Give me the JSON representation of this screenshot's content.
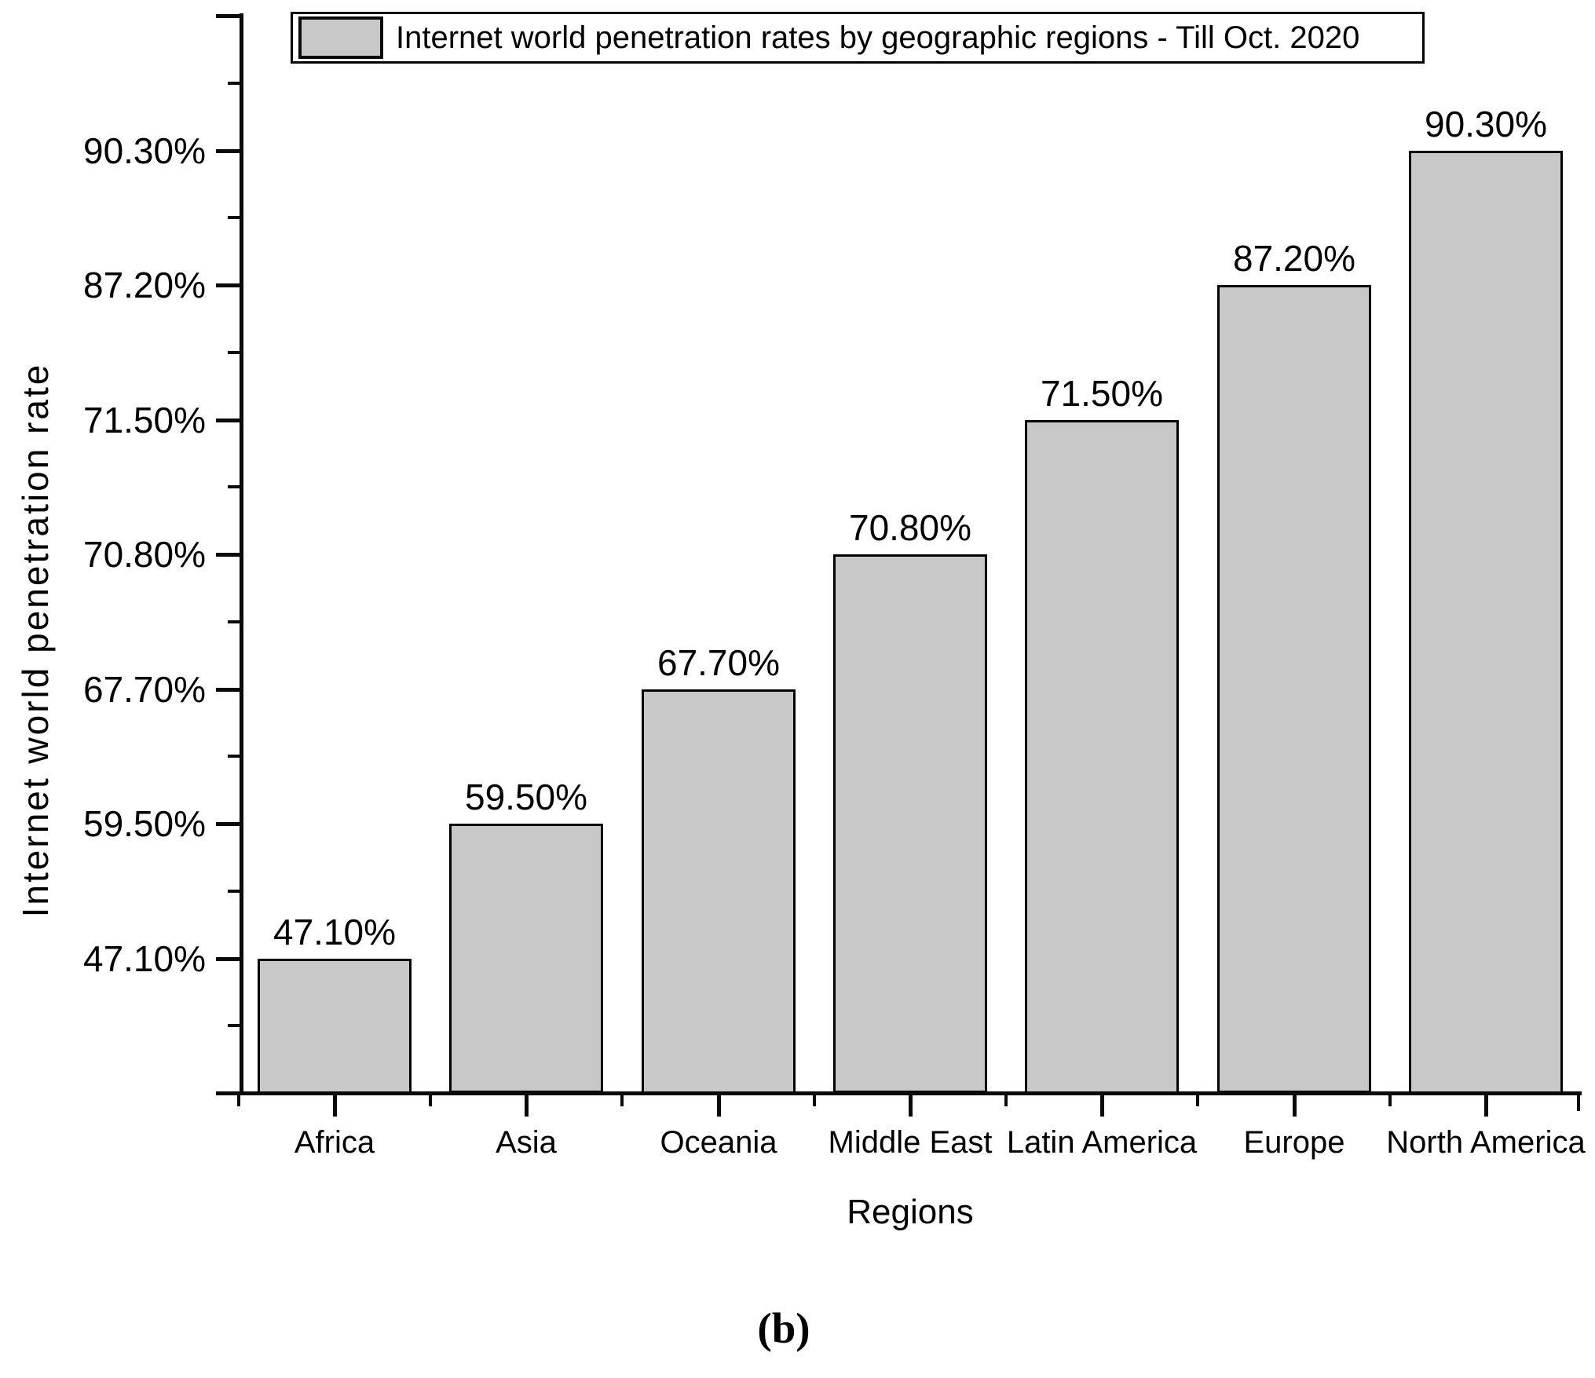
{
  "legend": {
    "label": "Internet world penetration rates by geographic regions - Till Oct. 2020",
    "swatch_color": "#c8c8c8"
  },
  "y_axis": {
    "title": "Internet world penetration rate",
    "tick_labels_top_to_bottom": [
      "90.30%",
      "87.20%",
      "71.50%",
      "70.80%",
      "67.70%",
      "59.50%",
      "47.10%"
    ]
  },
  "x_axis": {
    "title": "Regions",
    "categories": [
      "Africa",
      "Asia",
      "Oceania",
      "Middle East",
      "Latin America",
      "Europe",
      "North America"
    ]
  },
  "caption": "(b)",
  "colors": {
    "background": "#ffffff",
    "bar_fill": "#c8c8c8",
    "bar_border": "#000000",
    "axis": "#0a0a0a",
    "text": "#000000"
  },
  "chart_data": {
    "type": "bar",
    "title": "Internet world penetration rates by geographic regions - Till Oct. 2020",
    "xlabel": "Regions",
    "ylabel": "Internet world penetration rate",
    "categories": [
      "Africa",
      "Asia",
      "Oceania",
      "Middle East",
      "Latin America",
      "Europe",
      "North America"
    ],
    "values": [
      47.1,
      59.5,
      67.7,
      70.8,
      71.5,
      87.2,
      90.3
    ],
    "value_labels": [
      "47.10%",
      "59.50%",
      "67.70%",
      "70.80%",
      "71.50%",
      "87.20%",
      "90.30%"
    ],
    "unit": "%",
    "bar_color": "#c8c8c8",
    "bar_border_color": "#000000",
    "legend_position": "top",
    "grid": false,
    "y_axis_style": "ordinal: bars evenly stepped by rank; each y tick is placed at a bar top and labeled with that bar's value",
    "y_tick_labels": [
      "47.10%",
      "59.50%",
      "67.70%",
      "70.80%",
      "71.50%",
      "87.20%",
      "90.30%"
    ]
  }
}
